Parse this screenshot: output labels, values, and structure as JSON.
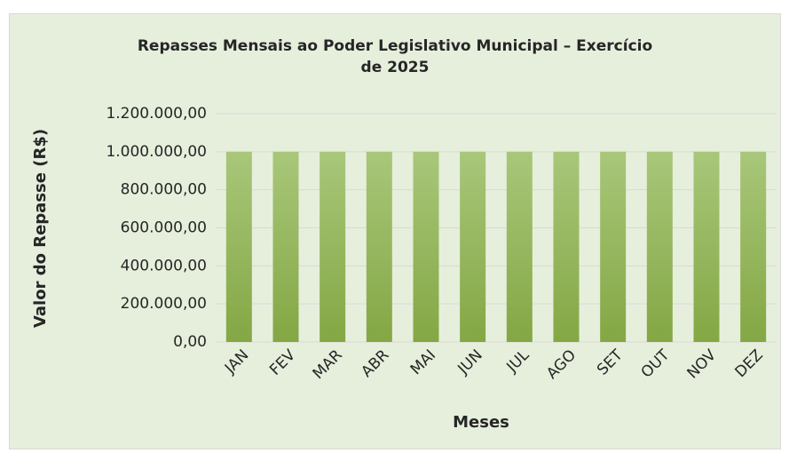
{
  "chart_data": {
    "type": "bar",
    "title": "Repasses Mensais ao Poder Legislativo Municipal – Exercício de 2025",
    "x_label": "Meses",
    "y_label": "Valor do Repasse (R$)",
    "categories": [
      "JAN",
      "FEV",
      "MAR",
      "ABR",
      "MAI",
      "JUN",
      "JUL",
      "AGO",
      "SET",
      "OUT",
      "NOV",
      "DEZ"
    ],
    "values": [
      1000000,
      1000000,
      1000000,
      1000000,
      1000000,
      1000000,
      1000000,
      1000000,
      1000000,
      1000000,
      1000000,
      1000000
    ],
    "color": "#8fb253",
    "ylim": [
      0,
      1200000
    ],
    "yticks": [
      {
        "value": 0,
        "label": "0,00"
      },
      {
        "value": 200000,
        "label": "200.000,00"
      },
      {
        "value": 400000,
        "label": "400.000,00"
      },
      {
        "value": 600000,
        "label": "600.000,00"
      },
      {
        "value": 800000,
        "label": "800.000,00"
      },
      {
        "value": 1000000,
        "label": "1.000.000,00"
      },
      {
        "value": 1200000,
        "label": "1.200.000,00"
      }
    ],
    "grid": true
  }
}
